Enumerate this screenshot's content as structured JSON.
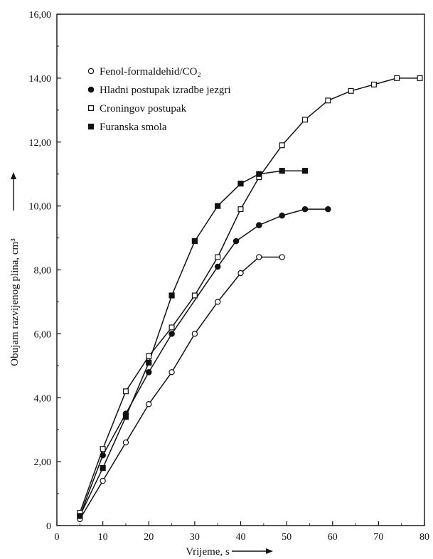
{
  "chart_data": {
    "type": "line",
    "xlabel": "Vrijeme, s",
    "ylabel": "Obujam razvijenog plina, cm³",
    "xlim": [
      0,
      80
    ],
    "ylim": [
      0,
      16
    ],
    "x_ticks": [
      "0",
      "10",
      "20",
      "30",
      "40",
      "50",
      "60",
      "70",
      "80"
    ],
    "y_ticks": [
      "0",
      "2,00",
      "4,00",
      "6,00",
      "8,00",
      "10,00",
      "12,00",
      "14,00",
      "16,00"
    ],
    "grid": false,
    "legend_position": "top-left",
    "series": [
      {
        "name": "Fenol-formaldehid/CO₂",
        "marker": "open-circle",
        "x": [
          5,
          10,
          15,
          20,
          25,
          30,
          35,
          40,
          44,
          49
        ],
        "y": [
          0.2,
          1.4,
          2.6,
          3.8,
          4.8,
          6.0,
          7.0,
          7.9,
          8.4,
          8.4
        ]
      },
      {
        "name": "Hladni postupak izradbe jezgri",
        "marker": "filled-circle",
        "x": [
          5,
          10,
          15,
          20,
          25,
          35,
          39,
          44,
          49,
          54,
          59
        ],
        "y": [
          0.3,
          2.2,
          3.5,
          4.8,
          6.0,
          8.1,
          8.9,
          9.4,
          9.7,
          9.9,
          9.9
        ]
      },
      {
        "name": "Croningov postupak",
        "marker": "open-square",
        "x": [
          5,
          10,
          15,
          20,
          25,
          30,
          35,
          40,
          44,
          49,
          54,
          59,
          64,
          69,
          74,
          79
        ],
        "y": [
          0.4,
          2.4,
          4.2,
          5.3,
          6.2,
          7.2,
          8.4,
          9.9,
          10.9,
          11.9,
          12.7,
          13.3,
          13.6,
          13.8,
          14.0,
          14.0
        ]
      },
      {
        "name": "Furanska smola",
        "marker": "filled-square",
        "x": [
          5,
          10,
          15,
          20,
          25,
          30,
          35,
          40,
          44,
          49,
          54
        ],
        "y": [
          0.3,
          1.8,
          3.4,
          5.1,
          7.2,
          8.9,
          10.0,
          10.7,
          11.0,
          11.1,
          11.1
        ]
      }
    ]
  }
}
